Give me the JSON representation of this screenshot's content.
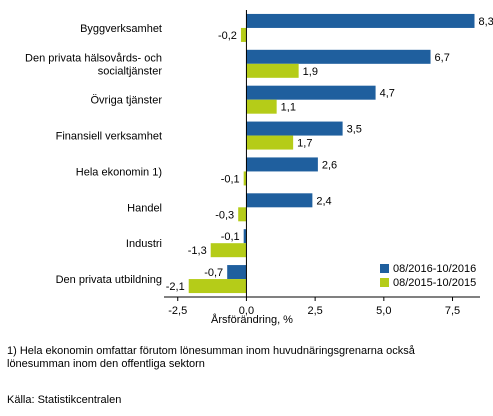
{
  "chart_data": {
    "type": "bar",
    "orientation": "horizontal",
    "categories": [
      [
        "Byggverksamhet"
      ],
      [
        "Den privata hälsovårds- och",
        "socialtjänster"
      ],
      [
        "Övriga tjänster"
      ],
      [
        "Finansiell verksamhet"
      ],
      [
        "Hela ekonomin 1)"
      ],
      [
        "Handel"
      ],
      [
        "Industri"
      ],
      [
        "Den privata utbildning"
      ]
    ],
    "series": [
      {
        "name": "08/2016-10/2016",
        "color": "#1f5f9e",
        "values": [
          8.3,
          6.7,
          4.7,
          3.5,
          2.6,
          2.4,
          -0.1,
          -0.7
        ],
        "labels": [
          "8,3",
          "6,7",
          "4,7",
          "3,5",
          "2,6",
          "2,4",
          "-0,1",
          "-0,7"
        ]
      },
      {
        "name": "08/2015-10/2015",
        "color": "#b5cc18",
        "values": [
          -0.2,
          1.9,
          1.1,
          1.7,
          -0.1,
          -0.3,
          -1.3,
          -2.1
        ],
        "labels": [
          "-0,2",
          "1,9",
          "1,1",
          "1,7",
          "-0,1",
          "-0,3",
          "-1,3",
          "-2,1"
        ]
      }
    ],
    "xlim": [
      -3,
      8.5
    ],
    "xticks": [
      -2.5,
      0,
      2.5,
      5,
      7.5
    ],
    "xtick_labels": [
      "-2,5",
      "0,0",
      "2,5",
      "5,0",
      "7,5"
    ],
    "xlabel": "Årsförändring, %",
    "legend_position": "bottom-right",
    "grid": false
  },
  "footnotes": {
    "line1": "1) Hela ekonomin omfattar förutom lönesumman inom huvudnäringsgrenarna också",
    "line2": "lönesumman inom den offentliga sektorn",
    "source": "Källa: Statistikcentralen"
  }
}
